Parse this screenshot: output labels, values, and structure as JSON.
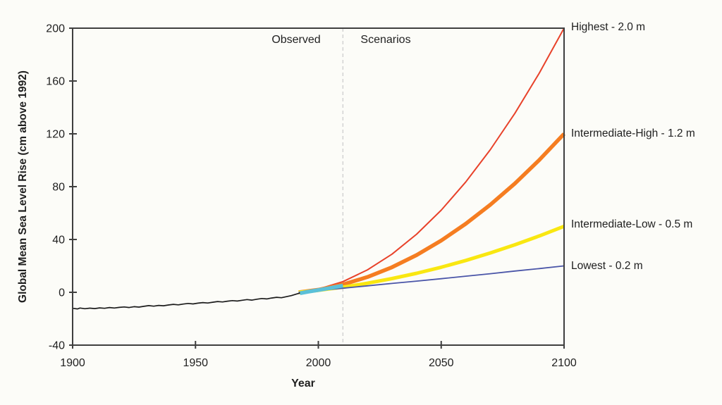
{
  "chart_data": {
    "type": "line",
    "title": "",
    "xlabel": "Year",
    "ylabel": "Global Mean Sea Level Rise (cm above 1992)",
    "xlim": [
      1900,
      2100
    ],
    "ylim": [
      -40,
      200
    ],
    "xticks": [
      1900,
      1950,
      2000,
      2050,
      2100
    ],
    "yticks": [
      -40,
      0,
      40,
      80,
      120,
      160,
      200
    ],
    "grid": false,
    "legend_position": "right-of-line-endpoints",
    "annotations": {
      "observed_label": "Observed",
      "scenarios_label": "Scenarios",
      "divider_year": 2010,
      "divider_style": "dashed-light-gray"
    },
    "colors": {
      "axis": "#3f3f3f",
      "divider": "#d0d0d0",
      "background": "#fcfcf8",
      "text": "#1f1f1f"
    },
    "series": [
      {
        "id": "scenario-highest",
        "label": "Highest - 2.0 m",
        "color": "#e8422a",
        "width": 2,
        "points": [
          [
            1992,
            0
          ],
          [
            2000,
            2.4
          ],
          [
            2010,
            8.1
          ],
          [
            2020,
            17.0
          ],
          [
            2030,
            28.9
          ],
          [
            2040,
            44.0
          ],
          [
            2050,
            62.2
          ],
          [
            2060,
            83.6
          ],
          [
            2070,
            108.0
          ],
          [
            2080,
            135.6
          ],
          [
            2090,
            166.2
          ],
          [
            2100,
            200
          ]
        ]
      },
      {
        "id": "scenario-intermediate-high",
        "label": "Intermediate-High - 1.2 m",
        "color": "#f57d21",
        "width": 5.5,
        "points": [
          [
            1992,
            0
          ],
          [
            2000,
            1.9
          ],
          [
            2010,
            5.9
          ],
          [
            2020,
            11.6
          ],
          [
            2030,
            19.0
          ],
          [
            2040,
            28.2
          ],
          [
            2050,
            39.2
          ],
          [
            2060,
            51.9
          ],
          [
            2070,
            66.3
          ],
          [
            2080,
            82.4
          ],
          [
            2090,
            100.3
          ],
          [
            2100,
            120
          ]
        ]
      },
      {
        "id": "scenario-intermediate-low",
        "label": "Intermediate-Low - 0.5 m",
        "color": "#f9e711",
        "width": 5,
        "points": [
          [
            1992,
            0
          ],
          [
            2000,
            1.5
          ],
          [
            2010,
            3.9
          ],
          [
            2020,
            6.9
          ],
          [
            2030,
            10.4
          ],
          [
            2040,
            14.4
          ],
          [
            2050,
            19.0
          ],
          [
            2060,
            24.1
          ],
          [
            2070,
            29.8
          ],
          [
            2080,
            36.0
          ],
          [
            2090,
            42.7
          ],
          [
            2100,
            50
          ]
        ]
      },
      {
        "id": "scenario-lowest",
        "label": "Lowest - 0.2 m",
        "color": "#4a55a8",
        "width": 1.8,
        "points": [
          [
            1992,
            0
          ],
          [
            2000,
            1.4
          ],
          [
            2010,
            3.1
          ],
          [
            2020,
            4.9
          ],
          [
            2030,
            6.7
          ],
          [
            2040,
            8.5
          ],
          [
            2050,
            10.3
          ],
          [
            2060,
            12.2
          ],
          [
            2070,
            14.1
          ],
          [
            2080,
            16.1
          ],
          [
            2090,
            18.0
          ],
          [
            2100,
            20
          ]
        ]
      },
      {
        "id": "observed-satellite",
        "label": "",
        "color": "#5bc0d8",
        "width": 5.5,
        "points": [
          [
            1992.5,
            -0.7
          ],
          [
            1996,
            0.5
          ],
          [
            2000,
            1.7
          ],
          [
            2004,
            3.0
          ],
          [
            2007,
            4.0
          ],
          [
            2010,
            5.0
          ]
        ]
      },
      {
        "id": "observed-tide-gauge",
        "label": "",
        "color": "#1c1c1c",
        "width": 1.7,
        "points": [
          [
            1900,
            -12.1
          ],
          [
            1902,
            -12.6
          ],
          [
            1903,
            -11.9
          ],
          [
            1905,
            -12.4
          ],
          [
            1907,
            -12.0
          ],
          [
            1909,
            -12.3
          ],
          [
            1911,
            -11.8
          ],
          [
            1913,
            -12.1
          ],
          [
            1915,
            -11.5
          ],
          [
            1917,
            -11.9
          ],
          [
            1919,
            -11.4
          ],
          [
            1921,
            -11.1
          ],
          [
            1923,
            -11.5
          ],
          [
            1925,
            -10.9
          ],
          [
            1927,
            -11.2
          ],
          [
            1929,
            -10.6
          ],
          [
            1931,
            -10.1
          ],
          [
            1933,
            -10.5
          ],
          [
            1935,
            -9.9
          ],
          [
            1937,
            -10.2
          ],
          [
            1939,
            -9.6
          ],
          [
            1941,
            -9.1
          ],
          [
            1943,
            -9.5
          ],
          [
            1945,
            -8.9
          ],
          [
            1947,
            -8.4
          ],
          [
            1949,
            -8.8
          ],
          [
            1951,
            -8.2
          ],
          [
            1953,
            -7.8
          ],
          [
            1955,
            -8.1
          ],
          [
            1957,
            -7.5
          ],
          [
            1959,
            -7.0
          ],
          [
            1961,
            -7.3
          ],
          [
            1963,
            -6.7
          ],
          [
            1965,
            -6.3
          ],
          [
            1967,
            -6.6
          ],
          [
            1969,
            -6.0
          ],
          [
            1971,
            -5.5
          ],
          [
            1973,
            -5.9
          ],
          [
            1975,
            -5.2
          ],
          [
            1977,
            -4.7
          ],
          [
            1979,
            -5.0
          ],
          [
            1981,
            -4.3
          ],
          [
            1983,
            -3.8
          ],
          [
            1985,
            -4.1
          ],
          [
            1987,
            -3.3
          ],
          [
            1989,
            -2.5
          ],
          [
            1991,
            -1.4
          ],
          [
            1992.5,
            -0.6
          ]
        ]
      }
    ]
  }
}
